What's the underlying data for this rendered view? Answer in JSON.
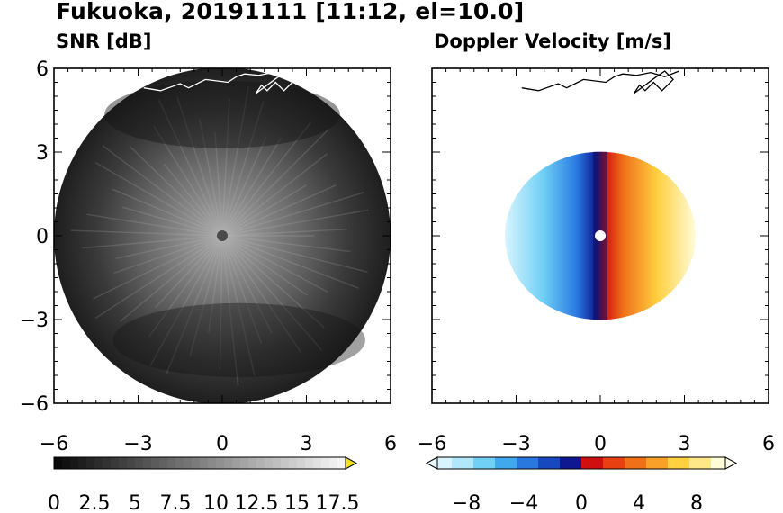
{
  "title": "Fukuoka, 20191111 [11:12, el=10.0]",
  "panels": [
    {
      "name": "SNR [dB]"
    },
    {
      "name": "Doppler Velocity [m/s]"
    }
  ],
  "chart_data": [
    {
      "type": "heatmap",
      "title": "SNR [dB]",
      "xlim": [
        -6,
        6
      ],
      "ylim": [
        -6,
        6
      ],
      "xticks": [
        "−6",
        "−3",
        "0",
        "3",
        "6"
      ],
      "yticks": [
        "−6",
        "−3",
        "0",
        "3",
        "6"
      ],
      "range_radius": 6,
      "colorbar": {
        "range": [
          0,
          18
        ],
        "labels": [
          "0",
          "2.5",
          "5",
          "7.5",
          "10",
          "12.5",
          "15",
          "17.5"
        ],
        "label_values": [
          0,
          2.5,
          5,
          7.5,
          10,
          12.5,
          15,
          17.5
        ],
        "colormap": "grayscale",
        "extend": "max",
        "extend_color": "#f0e020"
      }
    },
    {
      "type": "heatmap",
      "title": "Doppler Velocity [m/s]",
      "xlim": [
        -6,
        6
      ],
      "ylim": [
        -6,
        6
      ],
      "xticks": [
        "−6",
        "−3",
        "0",
        "3",
        "6"
      ],
      "yticks": [
        "−6",
        "−3",
        "0",
        "3",
        "6"
      ],
      "range_radius": 3.4,
      "colorbar": {
        "range": [
          -10,
          10
        ],
        "labels": [
          "−8",
          "−4",
          "0",
          "4",
          "8"
        ],
        "label_values": [
          -8,
          -4,
          0,
          4,
          8
        ],
        "colormap": "blue-white-red-yellow diverging",
        "extend": "both"
      }
    }
  ],
  "coastline": [
    [
      -2.8,
      5.3
    ],
    [
      -2.2,
      5.2
    ],
    [
      -1.5,
      5.45
    ],
    [
      -1.2,
      5.3
    ],
    [
      -0.6,
      5.6
    ],
    [
      0.2,
      5.5
    ],
    [
      0.5,
      5.7
    ],
    [
      0.8,
      5.8
    ],
    [
      1.3,
      5.75
    ],
    [
      1.8,
      5.85
    ],
    [
      2.3,
      5.7
    ],
    [
      2.8,
      5.9
    ]
  ],
  "island": [
    [
      1.2,
      5.1
    ],
    [
      1.4,
      5.4
    ],
    [
      1.6,
      5.2
    ],
    [
      1.9,
      5.5
    ],
    [
      2.2,
      5.2
    ],
    [
      2.6,
      5.6
    ],
    [
      2.3,
      5.9
    ],
    [
      2.0,
      5.7
    ]
  ]
}
